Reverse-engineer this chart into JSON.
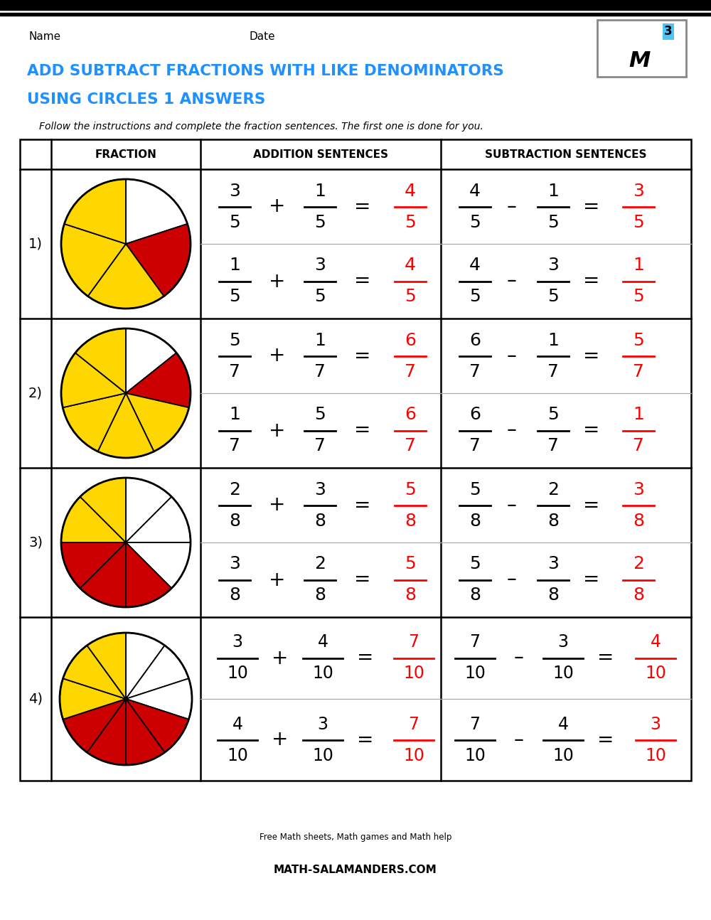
{
  "title_line1": "ADD SUBTRACT FRACTIONS WITH LIKE DENOMINATORS",
  "title_line2": "USING CIRCLES 1 ANSWERS",
  "subtitle": "Follow the instructions and complete the fraction sentences. The first one is done for you.",
  "name_label": "Name",
  "date_label": "Date",
  "title_color": "#1E90FF",
  "red_color": "#FF0000",
  "bg_color": "#FFFFFF",
  "yellow_color": "#FFD700",
  "dark_red_color": "#CC0000",
  "rows": [
    {
      "number": "1)",
      "denom": 5,
      "yellow_slices": 3,
      "red_slices": 1,
      "white_slices": 1,
      "add_row1": [
        3,
        1,
        4
      ],
      "add_row2": [
        1,
        3,
        4
      ],
      "sub_row1": [
        4,
        1,
        3
      ],
      "sub_row2": [
        4,
        3,
        1
      ]
    },
    {
      "number": "2)",
      "denom": 7,
      "yellow_slices": 5,
      "red_slices": 1,
      "white_slices": 1,
      "add_row1": [
        5,
        1,
        6
      ],
      "add_row2": [
        1,
        5,
        6
      ],
      "sub_row1": [
        6,
        1,
        5
      ],
      "sub_row2": [
        6,
        5,
        1
      ]
    },
    {
      "number": "3)",
      "denom": 8,
      "yellow_slices": 2,
      "red_slices": 3,
      "white_slices": 3,
      "add_row1": [
        2,
        3,
        5
      ],
      "add_row2": [
        3,
        2,
        5
      ],
      "sub_row1": [
        5,
        2,
        3
      ],
      "sub_row2": [
        5,
        3,
        2
      ]
    },
    {
      "number": "4)",
      "denom": 10,
      "yellow_slices": 3,
      "red_slices": 4,
      "white_slices": 3,
      "add_row1": [
        3,
        4,
        7
      ],
      "add_row2": [
        4,
        3,
        7
      ],
      "sub_row1": [
        7,
        3,
        4
      ],
      "sub_row2": [
        7,
        4,
        3
      ]
    }
  ]
}
